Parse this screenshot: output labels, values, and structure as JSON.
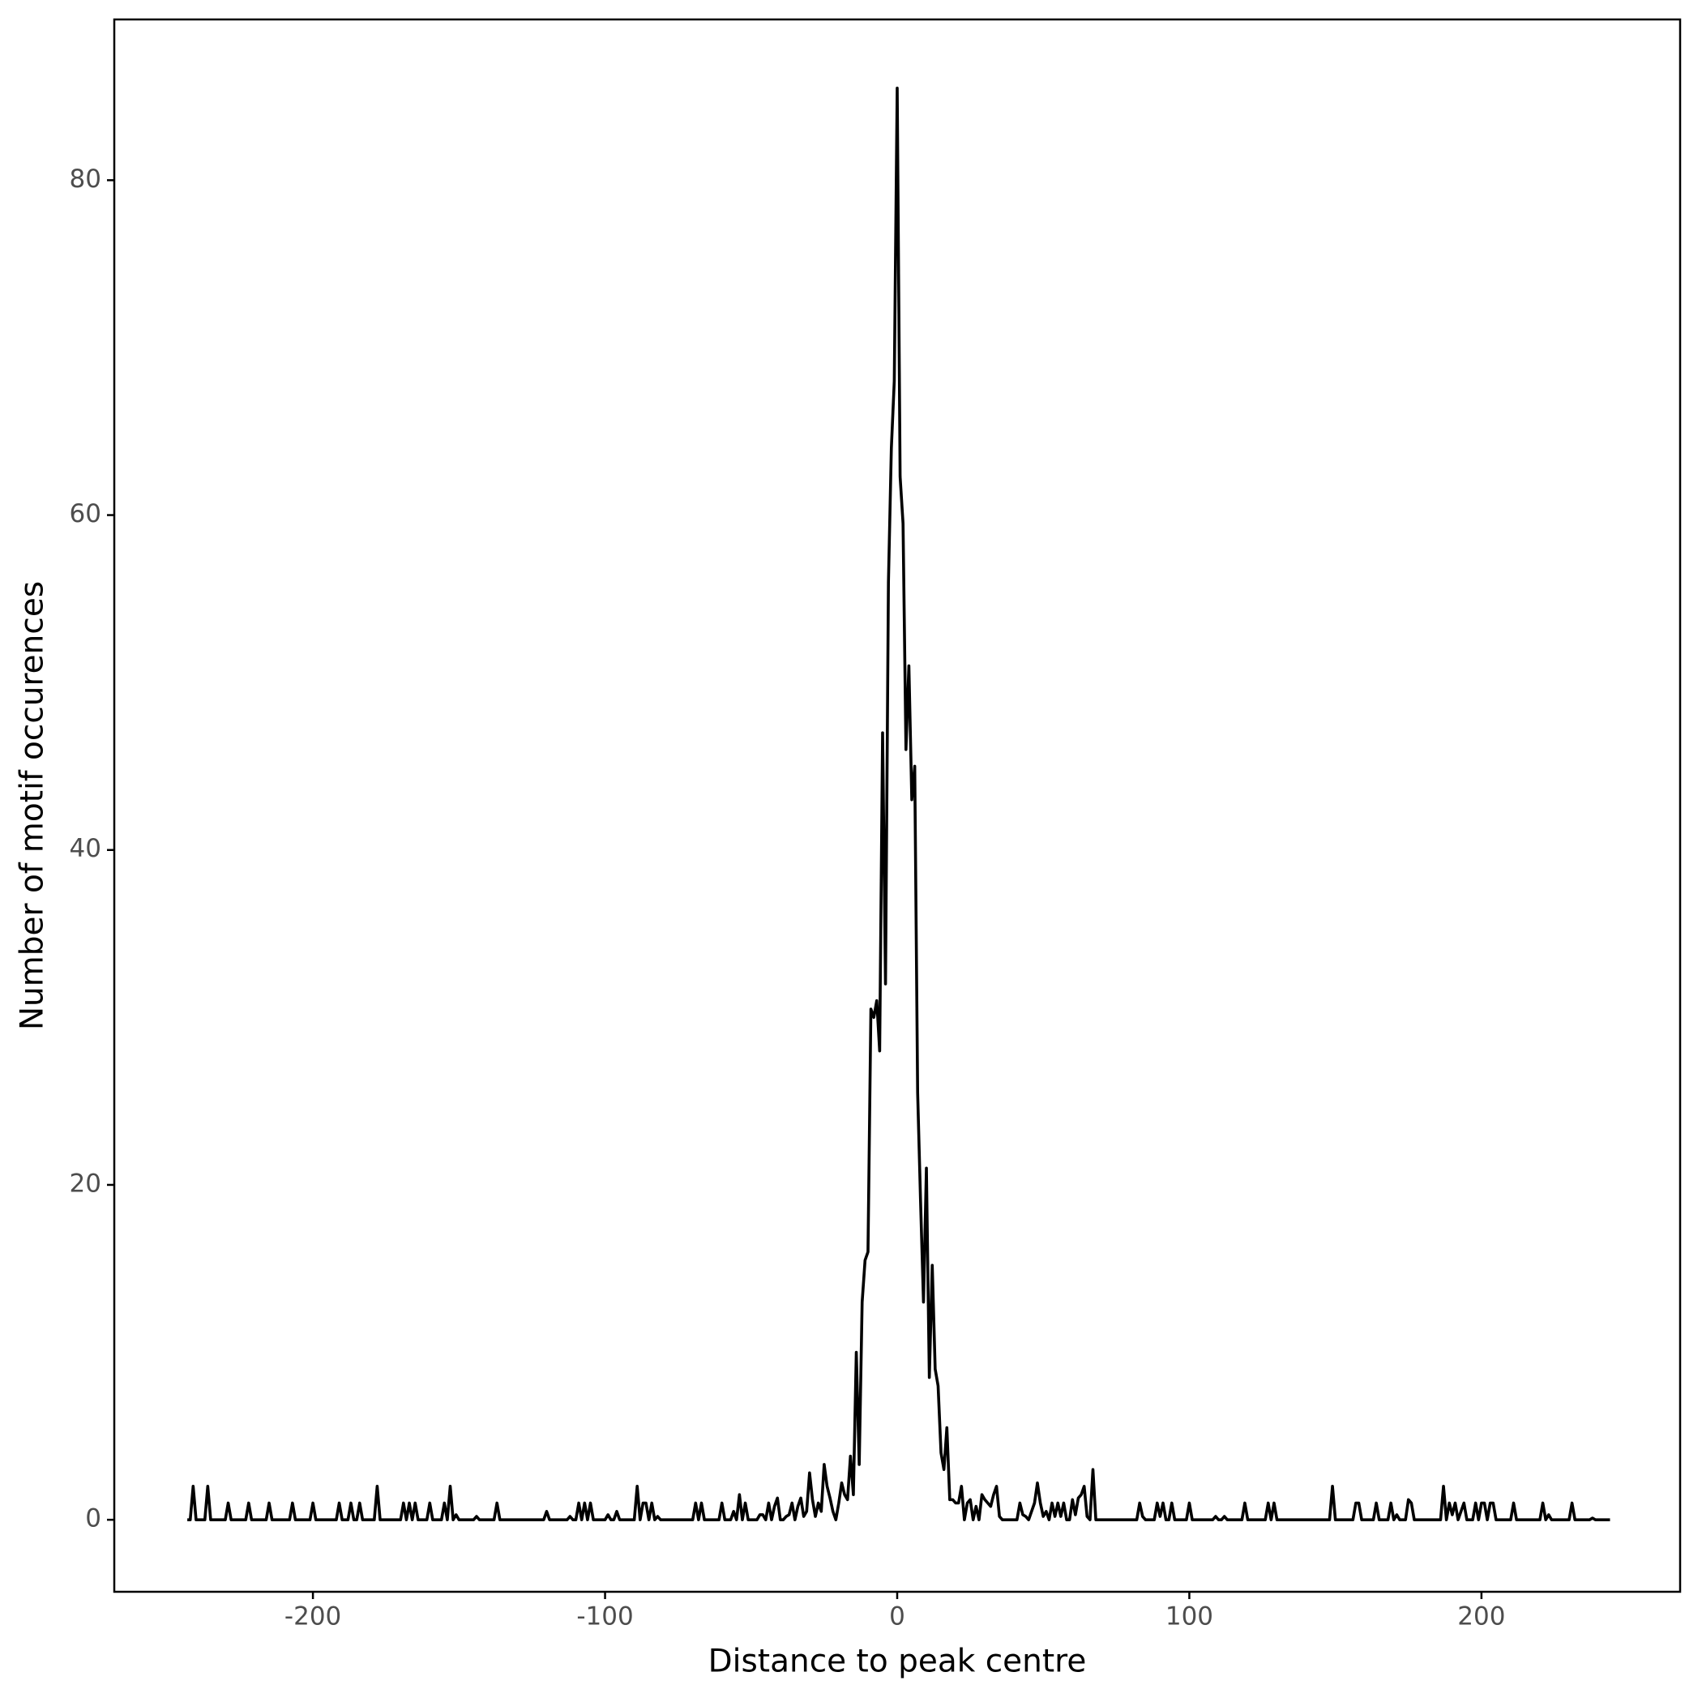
{
  "chart_data": {
    "type": "line",
    "x_label": "Distance to peak centre",
    "y_label": "Number of motif occurences",
    "color": "#000000",
    "grid": false,
    "xlim": [
      -268,
      268
    ],
    "ylim": [
      -4.3,
      89.6
    ],
    "xticks": [
      -200,
      -100,
      0,
      100,
      200
    ],
    "yticks": [
      0,
      20,
      40,
      60,
      80
    ],
    "x": [
      -243,
      -242,
      -241,
      -240,
      -237,
      -236,
      -235,
      -230,
      -229,
      -228,
      -223,
      -222,
      -221,
      -216,
      -215,
      -214,
      -208,
      -207,
      -206,
      -201,
      -200,
      -199,
      -192,
      -191,
      -190,
      -188,
      -187,
      -186,
      -185,
      -184,
      -183,
      -179,
      -178,
      -177,
      -170,
      -169,
      -168,
      -167,
      -166,
      -165,
      -164,
      -161,
      -160,
      -159,
      -156,
      -155,
      -154,
      -153,
      -152,
      -151,
      -150,
      -145,
      -144,
      -143,
      -138,
      -137,
      -136,
      -121,
      -120,
      -119,
      -113,
      -112,
      -111,
      -110,
      -109,
      -108,
      -107,
      -106,
      -105,
      -104,
      -100,
      -99,
      -98,
      -97,
      -96,
      -95,
      -90,
      -89,
      -88,
      -87,
      -86,
      -85,
      -84,
      -83,
      -82,
      -81,
      -70,
      -69,
      -68,
      -67,
      -66,
      -61,
      -60,
      -59,
      -57,
      -56,
      -55,
      -54,
      -53,
      -52,
      -51,
      -48,
      -47,
      -46,
      -45,
      -44,
      -43,
      -42,
      -41,
      -40,
      -39,
      -38,
      -37,
      -36,
      -35,
      -34,
      -33,
      -32,
      -31,
      -30,
      -29,
      -28,
      -27,
      -26,
      -25,
      -24,
      -23,
      -22,
      -21,
      -20,
      -19,
      -18,
      -17,
      -16,
      -15,
      -14,
      -13,
      -12,
      -11,
      -10,
      -9,
      -8,
      -7,
      -6,
      -5,
      -4,
      -3,
      -2,
      -1,
      0,
      1,
      2,
      3,
      4,
      5,
      6,
      7,
      8,
      9,
      10,
      11,
      12,
      13,
      14,
      15,
      16,
      17,
      18,
      19,
      20,
      21,
      22,
      23,
      24,
      25,
      26,
      27,
      28,
      29,
      30,
      31,
      32,
      33,
      34,
      35,
      36,
      41,
      42,
      43,
      44,
      45,
      46,
      47,
      48,
      49,
      50,
      51,
      52,
      53,
      54,
      55,
      56,
      57,
      58,
      59,
      60,
      61,
      62,
      63,
      64,
      65,
      66,
      67,
      68,
      82,
      83,
      84,
      85,
      88,
      89,
      90,
      91,
      92,
      93,
      94,
      95,
      99,
      100,
      101,
      108,
      109,
      110,
      111,
      112,
      113,
      118,
      119,
      120,
      126,
      127,
      128,
      129,
      130,
      148,
      149,
      150,
      156,
      157,
      158,
      159,
      163,
      164,
      165,
      168,
      169,
      170,
      171,
      172,
      174,
      175,
      176,
      177,
      186,
      187,
      188,
      189,
      190,
      191,
      192,
      193,
      194,
      195,
      197,
      198,
      199,
      200,
      201,
      202,
      203,
      204,
      205,
      210,
      211,
      212,
      220,
      221,
      222,
      223,
      224,
      230,
      231,
      232,
      237,
      238,
      239,
      244
    ],
    "values": [
      0,
      0,
      2,
      0,
      0,
      2,
      0,
      0,
      1,
      0,
      0,
      1,
      0,
      0,
      1,
      0,
      0,
      1,
      0,
      0,
      1,
      0,
      0,
      1,
      0,
      0,
      1,
      0,
      0,
      1,
      0,
      0,
      2,
      0,
      0,
      1,
      0,
      1,
      0,
      1,
      0,
      0,
      1,
      0,
      0,
      1,
      0,
      2,
      0,
      0.3,
      0,
      0,
      0.2,
      0,
      0,
      1,
      0,
      0,
      0.5,
      0,
      0,
      0.2,
      0,
      0,
      1,
      0,
      1,
      0,
      1,
      0,
      0,
      0.3,
      0,
      0,
      0.5,
      0,
      0,
      2,
      0,
      1,
      1,
      0,
      1,
      0,
      0.2,
      0,
      0,
      1,
      0,
      1,
      0,
      0,
      1,
      0,
      0,
      0.5,
      0,
      1.5,
      0,
      1,
      0,
      0,
      0.3,
      0.3,
      0,
      1,
      0,
      0.8,
      1.3,
      0,
      0,
      0.2,
      0.3,
      1,
      0,
      0.8,
      1.3,
      0.2,
      0.5,
      2.8,
      1.2,
      0.2,
      1,
      0.5,
      3.3,
      2,
      1.3,
      0.5,
      0,
      1,
      2.2,
      1.5,
      1.2,
      3.8,
      1.5,
      10,
      3.3,
      13,
      15.5,
      16,
      30.5,
      30,
      31,
      28,
      47,
      32,
      56,
      64,
      68,
      85.5,
      62.3,
      59.5,
      46,
      51,
      43,
      45,
      25.5,
      19,
      13,
      21,
      8.5,
      15.2,
      9,
      8,
      4,
      3,
      5.5,
      1.2,
      1.2,
      1,
      1,
      2,
      0,
      1,
      1.2,
      0,
      0.8,
      0,
      1.5,
      1.2,
      1,
      0.8,
      1.5,
      2,
      0.2,
      0,
      0,
      1,
      0.3,
      0.2,
      0,
      0.5,
      1,
      2.2,
      1,
      0.2,
      0.5,
      0,
      1,
      0.2,
      1,
      0.2,
      1,
      0,
      0,
      1.2,
      0.3,
      1.3,
      1.5,
      2,
      0.2,
      0,
      3,
      0,
      0,
      1,
      0.2,
      0,
      0,
      1,
      0.2,
      1,
      0,
      0,
      1,
      0,
      0,
      1,
      0,
      0,
      0.2,
      0,
      0,
      0.2,
      0,
      0,
      1,
      0,
      0,
      1,
      0,
      1,
      0,
      0,
      2,
      0,
      0,
      1,
      1,
      0,
      0,
      1,
      0,
      0,
      1,
      0,
      0.3,
      0,
      0,
      1.2,
      1,
      0,
      0,
      2,
      0,
      1,
      0.3,
      1,
      0,
      0.5,
      1,
      0,
      0,
      1,
      0,
      1,
      1,
      0,
      1,
      1,
      0,
      0,
      1,
      0,
      0,
      1,
      0,
      0.3,
      0,
      0,
      1,
      0,
      0,
      0.1,
      0,
      0
    ]
  }
}
